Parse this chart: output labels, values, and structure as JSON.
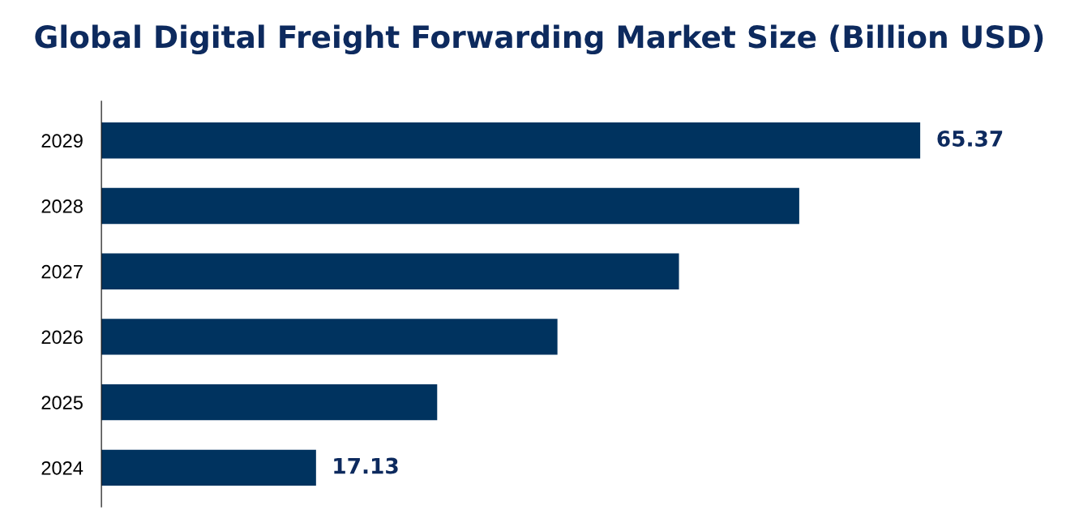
{
  "chart_data": {
    "type": "bar",
    "orientation": "horizontal",
    "title": "Global Digital Freight Forwarding Market Size (Billion USD)",
    "categories": [
      "2029",
      "2028",
      "2027",
      "2026",
      "2025",
      "2024"
    ],
    "values": [
      65.37,
      55.7,
      46.1,
      36.4,
      26.8,
      17.13
    ],
    "value_labels": [
      "65.37",
      null,
      null,
      null,
      null,
      "17.13"
    ],
    "color": "#00335f",
    "grid": false
  }
}
